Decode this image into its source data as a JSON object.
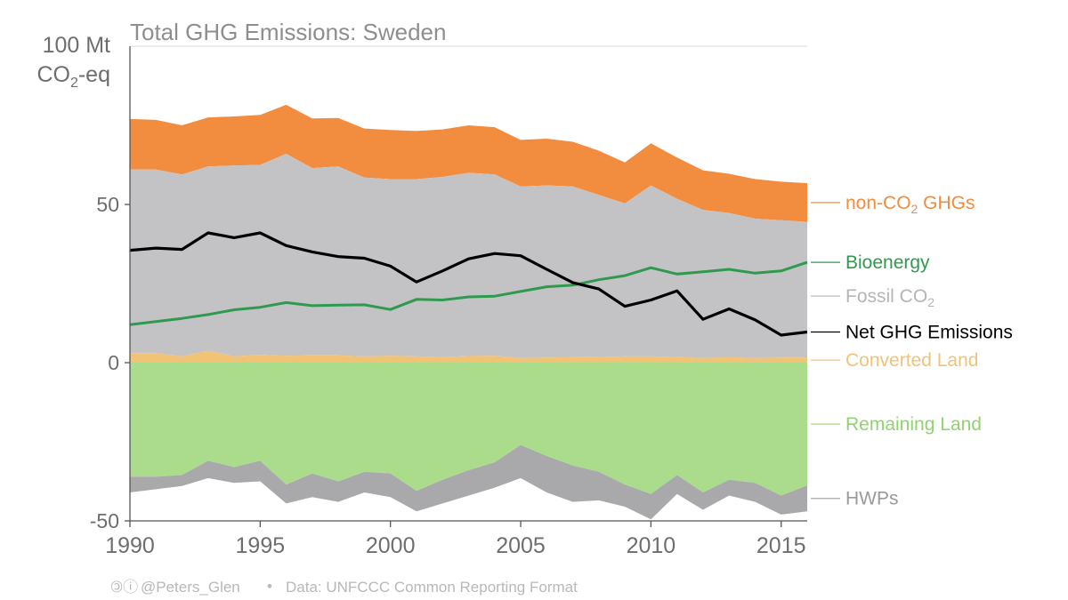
{
  "chart_data": {
    "type": "area",
    "title": "Total GHG Emissions: Sweden",
    "ylabel": "100 Mt",
    "ylabel_line2_main": "CO",
    "ylabel_line2_sub": "2",
    "ylabel_line2_tail": "-eq",
    "ylim": [
      -50,
      100
    ],
    "xlim": [
      1990,
      2016
    ],
    "yticks": [
      {
        "value": 0,
        "label": "0"
      },
      {
        "value": 50,
        "label": "50"
      },
      {
        "value": -50,
        "label": "-50"
      }
    ],
    "xticks": [
      {
        "value": 1990,
        "label": "1990"
      },
      {
        "value": 1995,
        "label": "1995"
      },
      {
        "value": 2000,
        "label": "2000"
      },
      {
        "value": 2005,
        "label": "2005"
      },
      {
        "value": 2010,
        "label": "2010"
      },
      {
        "value": 2015,
        "label": "2015"
      }
    ],
    "years": [
      1990,
      1991,
      1992,
      1993,
      1994,
      1995,
      1996,
      1997,
      1998,
      1999,
      2000,
      2001,
      2002,
      2003,
      2004,
      2005,
      2006,
      2007,
      2008,
      2009,
      2010,
      2011,
      2012,
      2013,
      2014,
      2015,
      2016
    ],
    "series": [
      {
        "name": "non-CO2 GHGs",
        "label": "non-CO",
        "label_sub": "2",
        "label_tail": " GHGs",
        "color": "#f28c3e",
        "kind": "band",
        "lower": [
          61,
          61,
          59.5,
          62,
          62.3,
          62.5,
          66,
          61.5,
          62,
          58.5,
          58,
          58,
          58.7,
          60,
          59.5,
          55.7,
          56,
          55.7,
          53,
          50.3,
          56,
          51.8,
          48.3,
          47.3,
          45.5,
          45,
          44.5
        ],
        "upper": [
          77,
          76.7,
          75,
          77.5,
          77.8,
          78.3,
          81.5,
          77.2,
          77.3,
          74,
          73.5,
          73.2,
          73.7,
          75,
          74.4,
          70.4,
          70.8,
          69.8,
          67,
          63.3,
          69.3,
          64.8,
          60.8,
          59.7,
          58,
          57.2,
          56.7
        ]
      },
      {
        "name": "Fossil CO2",
        "label": "Fossil CO",
        "label_sub": "2",
        "label_tail": "",
        "color": "#c3c3c5",
        "kind": "band",
        "lower": [
          3,
          3,
          2,
          3.8,
          2,
          2.5,
          2.2,
          2.3,
          2.3,
          2,
          2.2,
          2,
          1.8,
          2.1,
          2.2,
          1.5,
          1.6,
          1.7,
          1.8,
          2,
          2,
          1.8,
          1.5,
          1.7,
          1.5,
          1.6,
          1.6
        ],
        "upper": [
          61,
          61,
          59.5,
          62,
          62.3,
          62.5,
          66,
          61.5,
          62,
          58.5,
          58,
          58,
          58.7,
          60,
          59.5,
          55.7,
          56,
          55.7,
          53,
          50.3,
          56,
          51.8,
          48.3,
          47.3,
          45.5,
          45,
          44.5
        ]
      },
      {
        "name": "Converted Land",
        "label": "Converted Land",
        "label_sub": "",
        "label_tail": "",
        "color": "#f0c377",
        "kind": "band",
        "lower": [
          0,
          0,
          0,
          0,
          0,
          0,
          0,
          0,
          0,
          0,
          0,
          0,
          0,
          0,
          0,
          0,
          0,
          0,
          0,
          0,
          0,
          0,
          0,
          0,
          0,
          0,
          0
        ],
        "upper": [
          3,
          3,
          2,
          3.8,
          2,
          2.5,
          2.2,
          2.3,
          2.3,
          2,
          2.2,
          2,
          1.8,
          2.1,
          2.2,
          1.5,
          1.6,
          1.7,
          1.8,
          2,
          2,
          1.8,
          1.5,
          1.7,
          1.5,
          1.6,
          1.6
        ]
      },
      {
        "name": "Remaining Land",
        "label": "Remaining Land",
        "label_sub": "",
        "label_tail": "",
        "color": "#abdc8c",
        "kind": "band",
        "lower": [
          -36,
          -36,
          -35.5,
          -31,
          -33,
          -31,
          -38.5,
          -35,
          -37.5,
          -34.5,
          -35,
          -40.5,
          -37,
          -34,
          -31.5,
          -26,
          -29.5,
          -32.5,
          -34.5,
          -38.5,
          -41.5,
          -35.5,
          -41,
          -37,
          -38,
          -42,
          -38.8
        ],
        "upper": [
          0,
          0,
          0,
          0,
          0,
          0,
          0,
          0,
          0,
          0,
          0,
          0,
          0,
          0,
          0,
          0,
          0,
          0,
          0,
          0,
          0,
          0,
          0,
          0,
          0,
          0,
          0
        ]
      },
      {
        "name": "HWPs",
        "label": "HWPs",
        "label_sub": "",
        "label_tail": "",
        "color": "#a9a9ab",
        "kind": "band",
        "lower": [
          -41,
          -40,
          -39,
          -36.5,
          -38,
          -37.5,
          -44.5,
          -42.5,
          -44,
          -41,
          -42.5,
          -47,
          -44.5,
          -42,
          -39.5,
          -36.5,
          -41,
          -44,
          -43.5,
          -45.5,
          -49.5,
          -41.5,
          -46.5,
          -42,
          -44,
          -48,
          -47
        ],
        "upper": [
          -36,
          -36,
          -35.5,
          -31,
          -33,
          -31,
          -38.5,
          -35,
          -37.5,
          -34.5,
          -35,
          -40.5,
          -37,
          -34,
          -31.5,
          -26,
          -29.5,
          -32.5,
          -34.5,
          -38.5,
          -41.5,
          -35.5,
          -41,
          -37,
          -38,
          -42,
          -38.8
        ]
      },
      {
        "name": "Bioenergy",
        "label": "Bioenergy",
        "label_sub": "",
        "label_tail": "",
        "color": "#2f9a4e",
        "kind": "line",
        "values": [
          12,
          13,
          14,
          15.2,
          16.7,
          17.5,
          19,
          18,
          18.2,
          18.3,
          16.8,
          20,
          19.8,
          20.8,
          21,
          22.5,
          24,
          24.5,
          26.2,
          27.5,
          30,
          28,
          28.7,
          29.5,
          28.3,
          29,
          31.7
        ]
      },
      {
        "name": "Net GHG Emissions",
        "label": "Net GHG Emissions",
        "label_sub": "",
        "label_tail": "",
        "color": "#000000",
        "kind": "line",
        "values": [
          35.5,
          36.2,
          35.8,
          41,
          39.5,
          41,
          37,
          35,
          33.5,
          33,
          30.5,
          25.5,
          29,
          32.8,
          34.5,
          33.8,
          29.5,
          25.3,
          23.3,
          17.8,
          19.8,
          22.7,
          13.7,
          17,
          13.5,
          8.7,
          9.7
        ]
      }
    ],
    "legend_placement": "right, inline at series end",
    "grid": false
  },
  "credit": {
    "symbols": "🄯ⓘ",
    "handle": "@Peters_Glen",
    "separator": "•",
    "source": "Data: UNFCCC Common Reporting Format"
  }
}
